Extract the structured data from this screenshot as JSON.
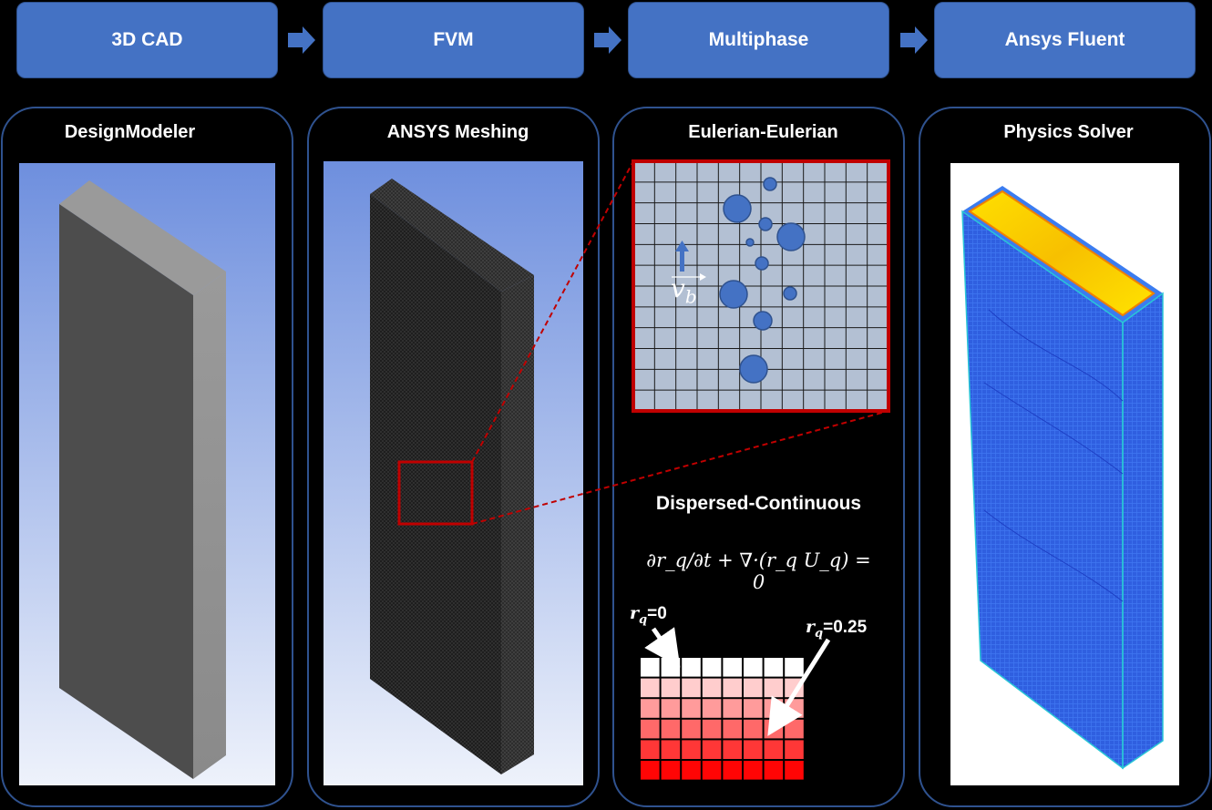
{
  "stages": [
    {
      "label": "3D CAD"
    },
    {
      "label": "FVM"
    },
    {
      "label": "Multiphase"
    },
    {
      "label": "Ansys Fluent"
    }
  ],
  "panels": [
    {
      "title": "DesignModeler"
    },
    {
      "title": "ANSYS Meshing"
    },
    {
      "title": "Eulerian-Eulerian"
    },
    {
      "title": "Physics Solver"
    }
  ],
  "multiphase": {
    "velocity_symbol": "v",
    "velocity_subscript": "b",
    "section_title": "Dispersed-Continuous",
    "equation": "∂r_q/∂t + ∇·(r_q U_q) = 0",
    "rq_low": "=0",
    "rq_high": "=0.25",
    "rq_symbol": "r",
    "rq_subscript": "q"
  },
  "colors": {
    "stage_fill": "#4472c4",
    "panel_border": "#2f528f",
    "highlight_red": "#c00000",
    "bubble": "#4472c4",
    "arrow": "#4472c4"
  }
}
